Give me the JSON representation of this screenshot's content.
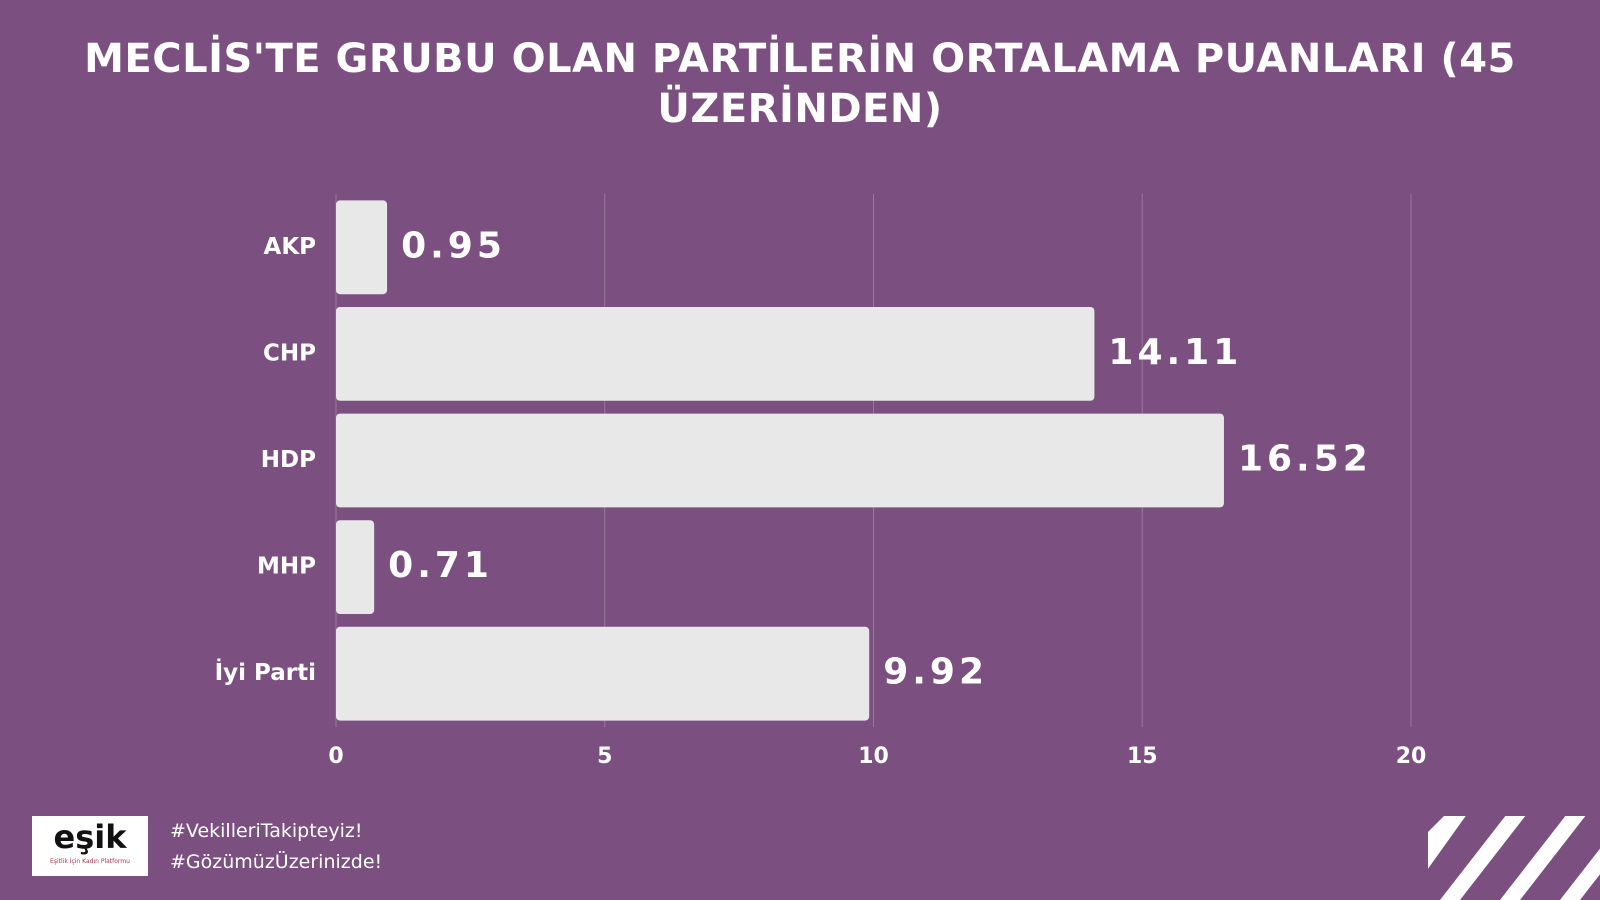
{
  "chart_data": {
    "type": "barh",
    "title": "MECLİS'TE GRUBU OLAN PARTİLERİN ORTALAMA PUANLARI (45 ÜZERİNDEN)",
    "categories": [
      "AKP",
      "CHP",
      "HDP",
      "MHP",
      "İyi Parti"
    ],
    "values": [
      0.95,
      14.11,
      16.52,
      0.71,
      9.92
    ],
    "color": "#e8e8e8",
    "xlim": [
      0,
      20
    ],
    "xticks": [
      0,
      5,
      10,
      15,
      20
    ],
    "grid": true
  },
  "footer": {
    "logo": "eşik",
    "logo_tagline": "Eşitlik İçin Kadın Platformu",
    "hashtags": [
      "#VekilleriTakipteyiz!",
      "#GözümüzÜzerinizde!"
    ]
  }
}
